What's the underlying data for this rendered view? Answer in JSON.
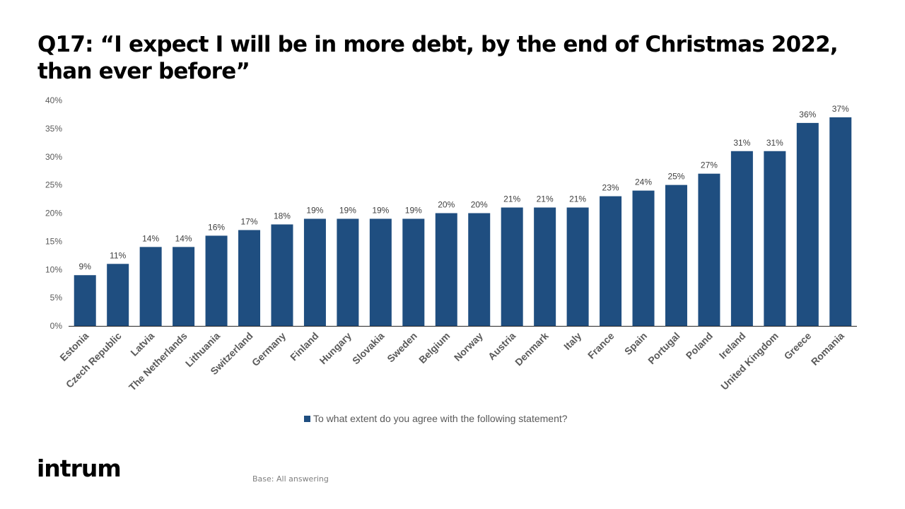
{
  "slide": {
    "title": "Q17: “I expect I will be in more debt, by the end of Christmas 2022, than ever before”",
    "logo_text": "intrum",
    "footnote": "Base: All answering"
  },
  "chart_data": {
    "type": "bar",
    "categories": [
      "Estonia",
      "Czech Republic",
      "Latvia",
      "The Netherlands",
      "Lithuania",
      "Switzerland",
      "Germany",
      "Finland",
      "Hungary",
      "Slovakia",
      "Sweden",
      "Belgium",
      "Norway",
      "Austria",
      "Denmark",
      "Italy",
      "France",
      "Spain",
      "Portugal",
      "Poland",
      "Ireland",
      "United Kingdom",
      "Greece",
      "Romania"
    ],
    "series": [
      {
        "name": "To what extent do you agree with the following statement?",
        "values": [
          9,
          11,
          14,
          14,
          16,
          17,
          18,
          19,
          19,
          19,
          19,
          20,
          20,
          21,
          21,
          21,
          23,
          24,
          25,
          27,
          31,
          31,
          36,
          37
        ],
        "data_labels": [
          "9%",
          "11%",
          "14%",
          "14%",
          "16%",
          "17%",
          "18%",
          "19%",
          "19%",
          "19%",
          "19%",
          "20%",
          "20%",
          "21%",
          "21%",
          "21%",
          "23%",
          "24%",
          "25%",
          "27%",
          "31%",
          "31%",
          "36%",
          "37%"
        ]
      }
    ],
    "y_ticks": [
      0,
      5,
      10,
      15,
      20,
      25,
      30,
      35,
      40
    ],
    "y_tick_labels": [
      "0%",
      "5%",
      "10%",
      "15%",
      "20%",
      "25%",
      "30%",
      "35%",
      "40%"
    ],
    "ylim": [
      0,
      40
    ],
    "bar_color": "#1f4e80",
    "grid": false,
    "legend_position": "bottom"
  }
}
